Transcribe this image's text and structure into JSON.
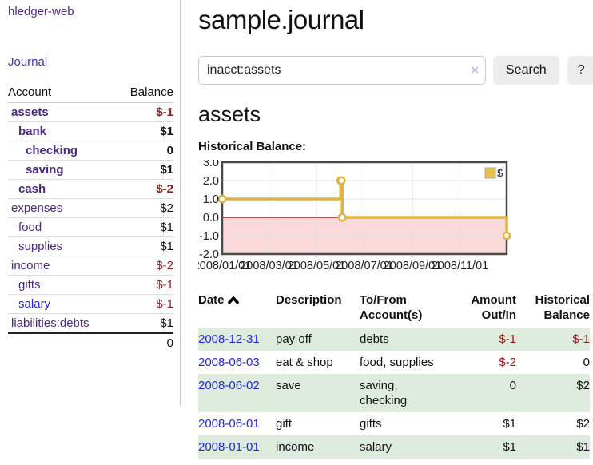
{
  "app": {
    "title": "hledger-web",
    "nav_journal": "Journal"
  },
  "sidebar": {
    "columns": {
      "account": "Account",
      "balance": "Balance"
    },
    "accounts": [
      {
        "name": "assets",
        "indent": 1,
        "bold": true,
        "balance": "$-1",
        "balance_style": "neg-strong",
        "blue": false
      },
      {
        "name": "bank",
        "indent": 2,
        "bold": true,
        "balance": "$1",
        "balance_style": "",
        "blue": false
      },
      {
        "name": "checking",
        "indent": 3,
        "bold": true,
        "balance": "0",
        "balance_style": "",
        "blue": false
      },
      {
        "name": "saving",
        "indent": 3,
        "bold": true,
        "balance": "$1",
        "balance_style": "",
        "blue": false
      },
      {
        "name": "cash",
        "indent": 2,
        "bold": true,
        "balance": "$-2",
        "balance_style": "neg-strong",
        "blue": false
      },
      {
        "name": "expenses",
        "indent": 1,
        "bold": false,
        "balance": "$2",
        "balance_style": "",
        "blue": false
      },
      {
        "name": "food",
        "indent": 2,
        "bold": false,
        "balance": "$1",
        "balance_style": "",
        "blue": false
      },
      {
        "name": "supplies",
        "indent": 2,
        "bold": false,
        "balance": "$1",
        "balance_style": "",
        "blue": false
      },
      {
        "name": "income",
        "indent": 1,
        "bold": false,
        "balance": "$-2",
        "balance_style": "neg",
        "blue": false
      },
      {
        "name": "gifts",
        "indent": 2,
        "bold": false,
        "balance": "$-1",
        "balance_style": "neg",
        "blue": false
      },
      {
        "name": "salary",
        "indent": 2,
        "bold": false,
        "balance": "$-1",
        "balance_style": "neg",
        "blue": true
      },
      {
        "name": "liabilities:debts",
        "indent": 1,
        "bold": false,
        "balance": "$1",
        "balance_style": "",
        "blue": false
      }
    ],
    "total": "0"
  },
  "main": {
    "title": "sample.journal",
    "search": {
      "value": "inacct:assets",
      "clear_icon": "×",
      "button_label": "Search",
      "help_label": "?"
    },
    "account_heading": "assets",
    "chart_label": "Historical Balance:"
  },
  "chart_data": {
    "type": "line",
    "title": "Historical Balance:",
    "interpolation": "step-after",
    "series": [
      {
        "name": "$",
        "points": [
          {
            "date": "2008-01-01",
            "value": 1
          },
          {
            "date": "2008-06-01",
            "value": 2
          },
          {
            "date": "2008-06-02",
            "value": 2
          },
          {
            "date": "2008-06-03",
            "value": 0
          },
          {
            "date": "2008-12-31",
            "value": -1
          }
        ]
      }
    ],
    "x_ticks": [
      "2008/01/01",
      "2008/03/01",
      "2008/05/01",
      "2008/07/01",
      "2008/09/01",
      "2008/11/01"
    ],
    "y_ticks": [
      "3.0",
      "2.0",
      "1.0",
      "0.0",
      "-1.0",
      "-2.0"
    ],
    "ylim": [
      -2,
      3
    ],
    "xlim": [
      "2008-01-01",
      "2008-12-31"
    ],
    "legend": [
      {
        "label": "$",
        "color": "#e8c14d"
      }
    ],
    "legend_position": "top-right",
    "grid": true,
    "colors": {
      "line": "#e2b33c",
      "marker_fill": "#ffffff",
      "negative_fill": "#f9d9d9",
      "zero_line": "#8b0000",
      "grid": "#e0e0e0",
      "border": "#4a4a4a"
    }
  },
  "table": {
    "headers": {
      "date": "Date",
      "description": "Description",
      "tofrom_1": "To/From",
      "tofrom_2": "Account(s)",
      "amount_1": "Amount",
      "amount_2": "Out/In",
      "balance_1": "Historical",
      "balance_2": "Balance"
    },
    "rows": [
      {
        "date": "2008-12-31",
        "description": "pay off",
        "accounts": "debts",
        "amount": "$-1",
        "amount_neg": true,
        "balance": "$-1",
        "balance_neg": true,
        "shaded": true
      },
      {
        "date": "2008-06-03",
        "description": "eat & shop",
        "accounts": "food, supplies",
        "amount": "$-2",
        "amount_neg": true,
        "balance": "0",
        "balance_neg": false,
        "shaded": false
      },
      {
        "date": "2008-06-02",
        "description": "save",
        "accounts": "saving, checking",
        "amount": "0",
        "amount_neg": false,
        "balance": "$2",
        "balance_neg": false,
        "shaded": true
      },
      {
        "date": "2008-06-01",
        "description": "gift",
        "accounts": "gifts",
        "amount": "$1",
        "amount_neg": false,
        "balance": "$2",
        "balance_neg": false,
        "shaded": false
      },
      {
        "date": "2008-01-01",
        "description": "income",
        "accounts": "salary",
        "amount": "$1",
        "amount_neg": false,
        "balance": "$1",
        "balance_neg": false,
        "shaded": true
      }
    ]
  }
}
